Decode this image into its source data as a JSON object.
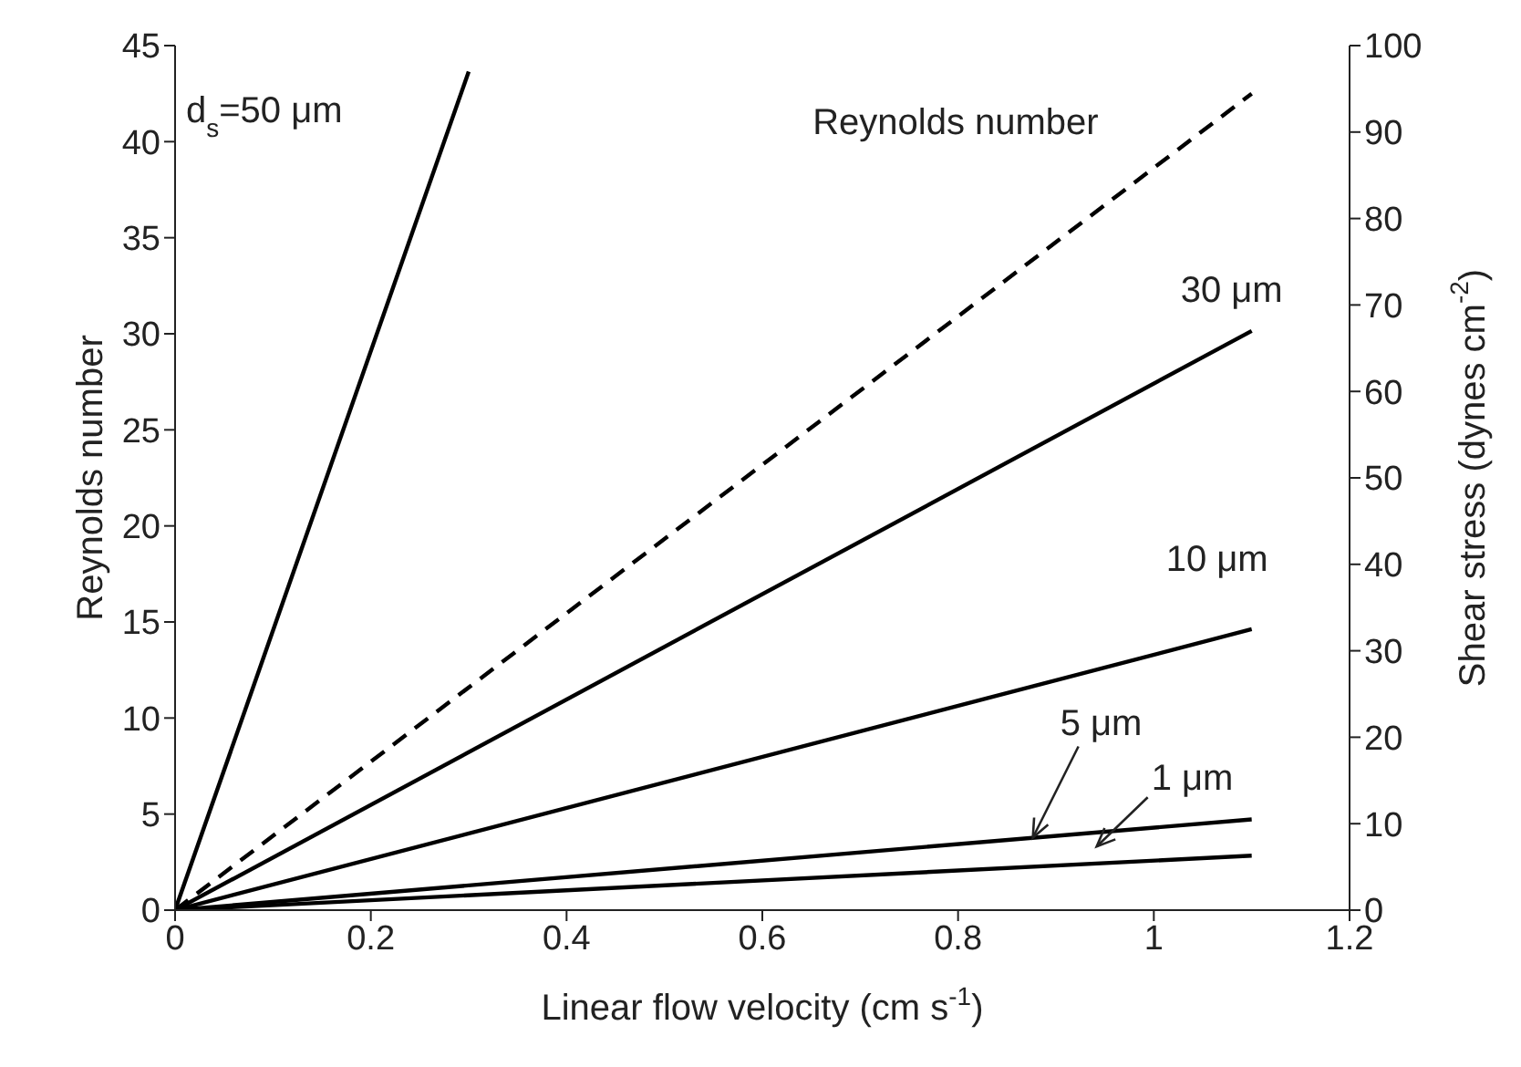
{
  "chart_data": {
    "type": "line",
    "xlabel": "Linear flow velocity (cm s$^{-1}$)",
    "ylabel": "Reynolds number",
    "y2label": "Shear stress (dynes cm$^{-2}$)",
    "xlim": [
      0,
      1.2
    ],
    "xticks": [
      0,
      0.2,
      0.4,
      0.6,
      0.8,
      1,
      1.2
    ],
    "ylim": [
      0,
      45
    ],
    "yticks": [
      0,
      5,
      10,
      15,
      20,
      25,
      30,
      35,
      40,
      45
    ],
    "y2lim": [
      0,
      100
    ],
    "y2ticks": [
      0,
      10,
      20,
      30,
      40,
      50,
      60,
      70,
      80,
      90,
      100
    ],
    "marker": "none",
    "series": [
      {
        "name": "d$_{s}$=50 μm",
        "color": "#000000",
        "line_style": "solid",
        "axis": "y2",
        "x": [
          0,
          0.3
        ],
        "values": [
          0,
          97
        ]
      },
      {
        "name": "Reynolds number",
        "color": "#000000",
        "line_style": "dashed",
        "axis": "y",
        "x": [
          0,
          1.1
        ],
        "values": [
          0,
          42.5
        ]
      },
      {
        "name": "30 μm",
        "color": "#000000",
        "line_style": "solid",
        "axis": "y2",
        "x": [
          0,
          1.1
        ],
        "values": [
          0,
          67
        ]
      },
      {
        "name": "10 μm",
        "color": "#000000",
        "line_style": "solid",
        "axis": "y2",
        "x": [
          0,
          1.1
        ],
        "values": [
          0,
          32.5
        ]
      },
      {
        "name": "5 μm",
        "color": "#000000",
        "line_style": "solid",
        "axis": "y2",
        "x": [
          0,
          1.1
        ],
        "values": [
          0,
          10.5
        ]
      },
      {
        "name": "1 μm",
        "color": "#000000",
        "line_style": "solid",
        "axis": "y2",
        "x": [
          0,
          1.1
        ],
        "values": [
          0,
          6.3
        ]
      }
    ]
  }
}
